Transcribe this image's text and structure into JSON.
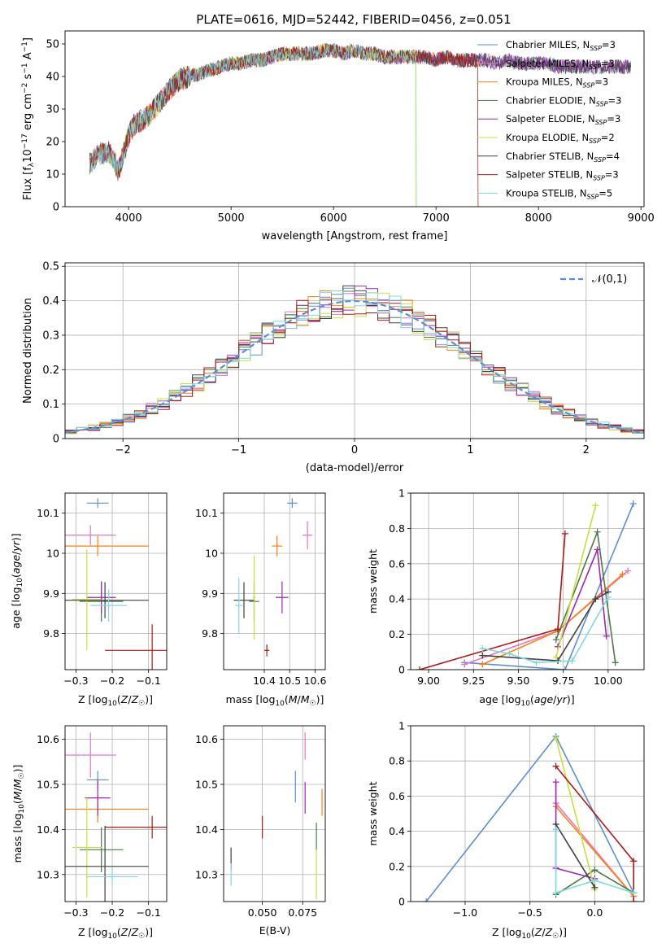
{
  "figure": {
    "title": "PLATE=0616, MJD=52442, FIBERID=0456, z=0.051"
  },
  "chart_data": [
    {
      "id": "spectrum",
      "type": "line",
      "xlabel": "wavelength [Angstrom, rest frame]",
      "ylabel": "Flux [f_λ10^-17 erg cm^-2 s^-1 A^-1]",
      "xlim": [
        3380,
        9030
      ],
      "ylim": [
        0,
        54
      ],
      "xticks": [
        4000,
        5000,
        6000,
        7000,
        8000,
        9000
      ],
      "yticks": [
        0,
        10,
        20,
        30,
        40,
        50
      ],
      "grid": false,
      "legend_position": "right",
      "continuum": {
        "x": [
          3620,
          3700,
          3800,
          3860,
          3900,
          3940,
          4000,
          4050,
          4100,
          4200,
          4300,
          4400,
          4500,
          4600,
          4700,
          4800,
          4900,
          5000,
          5100,
          5200,
          5300,
          5400,
          5500,
          5600,
          5700,
          5800,
          5900,
          6000,
          6100,
          6200,
          6300,
          6400,
          6500,
          6600,
          6700,
          6800,
          6900,
          7000,
          7100,
          7200,
          7300,
          7400,
          7500,
          7600,
          7700,
          7800,
          7900,
          8000,
          8100,
          8200,
          8300,
          8400,
          8500,
          8600,
          8700,
          8800,
          8900
        ],
        "y": [
          13,
          16,
          17,
          14,
          11,
          15,
          22,
          25,
          26,
          28,
          32,
          36,
          39,
          40,
          41,
          42,
          43,
          44,
          44,
          45,
          45,
          46,
          47,
          47,
          47,
          47,
          48,
          48,
          47,
          48,
          47,
          47,
          46,
          46,
          46,
          46,
          46,
          45,
          46,
          45,
          45,
          45,
          45,
          44,
          45,
          44,
          44,
          44,
          44,
          43,
          43,
          43,
          43,
          43,
          43,
          43,
          43
        ]
      },
      "series": [
        {
          "name": "Chabrier MILES, N_SSP=3",
          "color": "#5b8ed6"
        },
        {
          "name": "Salpeter MILES, N_SSP=3",
          "color": "#e377c2"
        },
        {
          "name": "Kroupa MILES, N_SSP=3",
          "color": "#ff7f0e"
        },
        {
          "name": "Chabrier ELODIE, N_SSP=3",
          "color": "#4b7b4b"
        },
        {
          "name": "Salpeter ELODIE, N_SSP=3",
          "color": "#9c27b0"
        },
        {
          "name": "Kroupa ELODIE, N_SSP=2",
          "color": "#c8e03a"
        },
        {
          "name": "Chabrier STELIB, N_SSP=4",
          "color": "#404040"
        },
        {
          "name": "Salpeter STELIB, N_SSP=3",
          "color": "#b01818"
        },
        {
          "name": "Kroupa STELIB, N_SSP=5",
          "color": "#7fd8e0"
        }
      ]
    },
    {
      "id": "residuals",
      "type": "line",
      "xlabel": "(data-model)/error",
      "ylabel": "Normed distribution",
      "xlim": [
        -2.5,
        2.5
      ],
      "ylim": [
        0,
        0.51
      ],
      "xticks": [
        -2,
        -1,
        0,
        1,
        2
      ],
      "yticks": [
        0.0,
        0.1,
        0.2,
        0.3,
        0.4,
        0.5
      ],
      "grid": true,
      "legend_position": "top-right",
      "reference": {
        "name": "𝒩(0,1)",
        "color": "#5b8ed6"
      },
      "hist_colors": [
        "#5b8ed6",
        "#e377c2",
        "#ff7f0e",
        "#4b7b4b",
        "#9c27b0",
        "#c8e03a",
        "#404040",
        "#b01818",
        "#7fd8e0"
      ]
    },
    {
      "id": "age-vs-z",
      "type": "scatter",
      "xlabel": "Z [log₁₀(Z/Z☉)]",
      "ylabel": "age  [log₁₀(age/yr)]",
      "xlim": [
        -0.33,
        -0.05
      ],
      "ylim": [
        9.71,
        10.15
      ],
      "xticks": [
        -0.3,
        -0.2,
        -0.1
      ],
      "yticks": [
        9.8,
        9.9,
        10.0,
        10.1
      ],
      "grid": true,
      "points": [
        {
          "color": "#5b8ed6",
          "x": -0.24,
          "y": 10.125,
          "xerr": 0.03,
          "yerr": 0.012
        },
        {
          "color": "#e377c2",
          "x": -0.26,
          "y": 10.045,
          "xerr": 0.07,
          "yerr": 0.025
        },
        {
          "color": "#ff7f0e",
          "x": -0.24,
          "y": 10.018,
          "xerr": 0.14,
          "yerr": 0.025
        },
        {
          "color": "#4b7b4b",
          "x": -0.23,
          "y": 9.88,
          "xerr": 0.06,
          "yerr": 0.05
        },
        {
          "color": "#9c27b0",
          "x": -0.23,
          "y": 9.89,
          "xerr": 0.04,
          "yerr": 0.04
        },
        {
          "color": "#c8e03a",
          "x": -0.27,
          "y": 9.885,
          "xerr": 0.04,
          "yerr": 0.125
        },
        {
          "color": "#404040",
          "x": -0.22,
          "y": 9.883,
          "xerr": 0.12,
          "yerr": 0.045
        },
        {
          "color": "#b01818",
          "x": -0.09,
          "y": 9.758,
          "xerr": 0.13,
          "yerr": 0.065
        },
        {
          "color": "#7fd8e0",
          "x": -0.21,
          "y": 9.87,
          "xerr": 0.05,
          "yerr": 0.04
        }
      ]
    },
    {
      "id": "age-vs-mass",
      "type": "scatter",
      "xlabel": "mass [log₁₀(M/M☉)]",
      "ylabel": "",
      "xlim": [
        10.24,
        10.64
      ],
      "ylim": [
        9.71,
        10.15
      ],
      "xticks": [
        10.4,
        10.5,
        10.6
      ],
      "yticks": [
        9.8,
        9.9,
        10.0,
        10.1
      ],
      "grid": true,
      "points": [
        {
          "color": "#5b8ed6",
          "x": 10.51,
          "y": 10.125,
          "xerr": 0.02,
          "yerr": 0.012
        },
        {
          "color": "#e377c2",
          "x": 10.57,
          "y": 10.045,
          "xerr": 0.02,
          "yerr": 0.035
        },
        {
          "color": "#ff7f0e",
          "x": 10.45,
          "y": 10.018,
          "xerr": 0.02,
          "yerr": 0.025
        },
        {
          "color": "#4b7b4b",
          "x": 10.36,
          "y": 9.88,
          "xerr": 0.02,
          "yerr": 0.05
        },
        {
          "color": "#9c27b0",
          "x": 10.47,
          "y": 9.89,
          "xerr": 0.025,
          "yerr": 0.04
        },
        {
          "color": "#c8e03a",
          "x": 10.36,
          "y": 9.89,
          "xerr": 0.005,
          "yerr": 0.105
        },
        {
          "color": "#404040",
          "x": 10.32,
          "y": 9.883,
          "xerr": 0.04,
          "yerr": 0.045
        },
        {
          "color": "#b01818",
          "x": 10.41,
          "y": 9.758,
          "xerr": 0.01,
          "yerr": 0.015
        },
        {
          "color": "#7fd8e0",
          "x": 10.3,
          "y": 9.87,
          "xerr": 0.015,
          "yerr": 0.07
        }
      ]
    },
    {
      "id": "weight-vs-age",
      "type": "line",
      "xlabel": "age  [log₁₀(age/yr)]",
      "ylabel": "mass weight",
      "xlim": [
        8.9,
        10.2
      ],
      "ylim": [
        0,
        1.0
      ],
      "xticks": [
        9.0,
        9.25,
        9.5,
        9.75,
        10.0
      ],
      "xticklabels": [
        "9.00",
        "9.25",
        "9.50",
        "9.75",
        "10.00"
      ],
      "yticks": [
        0.0,
        0.2,
        0.4,
        0.6,
        0.8,
        1.0
      ],
      "grid": true,
      "series": [
        {
          "color": "#5b8ed6",
          "x": [
            9.2,
            9.76,
            10.14
          ],
          "y": [
            0.04,
            0.0,
            0.94
          ]
        },
        {
          "color": "#e377c2",
          "x": [
            9.2,
            9.72,
            10.11
          ],
          "y": [
            0.03,
            0.22,
            0.56
          ]
        },
        {
          "color": "#ff7f0e",
          "x": [
            9.3,
            9.72,
            10.08
          ],
          "y": [
            0.03,
            0.22,
            0.54
          ]
        },
        {
          "color": "#4b7b4b",
          "x": [
            9.71,
            9.94,
            10.04
          ],
          "y": [
            0.17,
            0.78,
            0.04
          ]
        },
        {
          "color": "#9c27b0",
          "x": [
            9.72,
            9.94,
            9.99
          ],
          "y": [
            0.13,
            0.68,
            0.19
          ]
        },
        {
          "color": "#c8e03a",
          "x": [
            9.71,
            9.93
          ],
          "y": [
            0.07,
            0.93
          ]
        },
        {
          "color": "#404040",
          "x": [
            9.3,
            9.72,
            9.93,
            10.0
          ],
          "y": [
            0.08,
            0.05,
            0.4,
            0.44
          ]
        },
        {
          "color": "#b01818",
          "x": [
            8.95,
            9.72,
            9.76
          ],
          "y": [
            0.0,
            0.23,
            0.77
          ]
        },
        {
          "color": "#7fd8e0",
          "x": [
            9.3,
            9.45,
            9.6,
            9.8,
            10.0
          ],
          "y": [
            0.12,
            0.09,
            0.04,
            0.05,
            0.41
          ]
        }
      ]
    },
    {
      "id": "mass-vs-z",
      "type": "scatter",
      "xlabel": "Z [log₁₀(Z/Z☉)]",
      "ylabel": "mass [log₁₀(M/M☉)]",
      "xlim": [
        -0.33,
        -0.05
      ],
      "ylim": [
        10.24,
        10.63
      ],
      "xticks": [
        -0.3,
        -0.2,
        -0.1
      ],
      "yticks": [
        10.3,
        10.4,
        10.5,
        10.6
      ],
      "grid": true,
      "points": [
        {
          "color": "#5b8ed6",
          "x": -0.24,
          "y": 10.51,
          "xerr": 0.03,
          "yerr": 0.02
        },
        {
          "color": "#e377c2",
          "x": -0.26,
          "y": 10.565,
          "xerr": 0.07,
          "yerr": 0.05
        },
        {
          "color": "#ff7f0e",
          "x": -0.24,
          "y": 10.445,
          "xerr": 0.14,
          "yerr": 0.03
        },
        {
          "color": "#4b7b4b",
          "x": -0.23,
          "y": 10.355,
          "xerr": 0.06,
          "yerr": 0.05
        },
        {
          "color": "#9c27b0",
          "x": -0.24,
          "y": 10.47,
          "xerr": 0.035,
          "yerr": 0.04
        },
        {
          "color": "#c8e03a",
          "x": -0.27,
          "y": 10.36,
          "xerr": 0.04,
          "yerr": 0.11
        },
        {
          "color": "#404040",
          "x": -0.22,
          "y": 10.318,
          "xerr": 0.12,
          "yerr": 0.09
        },
        {
          "color": "#b01818",
          "x": -0.09,
          "y": 10.405,
          "xerr": 0.13,
          "yerr": 0.025
        },
        {
          "color": "#7fd8e0",
          "x": -0.2,
          "y": 10.295,
          "xerr": 0.07,
          "yerr": 0.02
        }
      ]
    },
    {
      "id": "mass-vs-ebv",
      "type": "scatter",
      "xlabel": "E(B-V)",
      "ylabel": "",
      "xlim": [
        0.026,
        0.089
      ],
      "ylim": [
        10.24,
        10.63
      ],
      "xticks": [
        0.05,
        0.075
      ],
      "xticklabels": [
        "0.050",
        "0.075"
      ],
      "yticks": [
        10.3,
        10.4,
        10.5,
        10.6
      ],
      "grid": true,
      "points": [
        {
          "color": "#5b8ed6",
          "x": 0.0705,
          "y": 10.495,
          "xerr": 0,
          "yerr": 0.035
        },
        {
          "color": "#e377c2",
          "x": 0.0765,
          "y": 10.585,
          "xerr": 0,
          "yerr": 0.03
        },
        {
          "color": "#ff7f0e",
          "x": 0.087,
          "y": 10.46,
          "xerr": 0,
          "yerr": 0.03
        },
        {
          "color": "#4b7b4b",
          "x": 0.0835,
          "y": 10.385,
          "xerr": 0,
          "yerr": 0.03
        },
        {
          "color": "#9c27b0",
          "x": 0.0765,
          "y": 10.47,
          "xerr": 0,
          "yerr": 0.035
        },
        {
          "color": "#c8e03a",
          "x": 0.0835,
          "y": 10.3,
          "xerr": 0,
          "yerr": 0.055
        },
        {
          "color": "#404040",
          "x": 0.0306,
          "y": 10.335,
          "xerr": 0,
          "yerr": 0.025
        },
        {
          "color": "#b01818",
          "x": 0.05,
          "y": 10.405,
          "xerr": 0,
          "yerr": 0.025
        },
        {
          "color": "#7fd8e0",
          "x": 0.0306,
          "y": 10.3,
          "xerr": 0,
          "yerr": 0.025
        }
      ]
    },
    {
      "id": "weight-vs-z",
      "type": "line",
      "xlabel": "Z [log₁₀(Z/Z☉)]",
      "ylabel": "mass weight",
      "xlim": [
        -1.42,
        0.38
      ],
      "ylim": [
        0,
        1.0
      ],
      "xticks": [
        -1.0,
        -0.5,
        0.0
      ],
      "xticklabels": [
        "−1.0",
        "−0.5",
        "0.0"
      ],
      "yticks": [
        0.0,
        0.2,
        0.4,
        0.6,
        0.8,
        1.0
      ],
      "grid": true,
      "series": [
        {
          "color": "#5b8ed6",
          "x": [
            -1.3,
            -0.3,
            0.3
          ],
          "y": [
            0.0,
            0.94,
            0.05
          ]
        },
        {
          "color": "#e377c2",
          "x": [
            -0.3,
            0.3
          ],
          "y": [
            0.56,
            0.03
          ]
        },
        {
          "color": "#ff7f0e",
          "x": [
            -0.3,
            0.3
          ],
          "y": [
            0.54,
            0.03
          ]
        },
        {
          "color": "#4b7b4b",
          "x": [
            -0.3,
            0.0,
            0.3
          ],
          "y": [
            0.04,
            0.18,
            0.05
          ]
        },
        {
          "color": "#9c27b0",
          "x": [
            -0.3,
            -0.3,
            0.0
          ],
          "y": [
            0.68,
            0.19,
            0.13
          ]
        },
        {
          "color": "#c8e03a",
          "x": [
            -0.3,
            0.0
          ],
          "y": [
            0.93,
            0.07
          ]
        },
        {
          "color": "#404040",
          "x": [
            -0.3,
            0.0
          ],
          "y": [
            0.44,
            0.08
          ]
        },
        {
          "color": "#b01818",
          "x": [
            -0.3,
            0.3,
            0.3
          ],
          "y": [
            0.77,
            0.23,
            0.0
          ]
        },
        {
          "color": "#7fd8e0",
          "x": [
            -0.3,
            -0.3,
            0.0,
            0.3
          ],
          "y": [
            0.41,
            0.05,
            0.12,
            0.05
          ]
        }
      ]
    }
  ]
}
